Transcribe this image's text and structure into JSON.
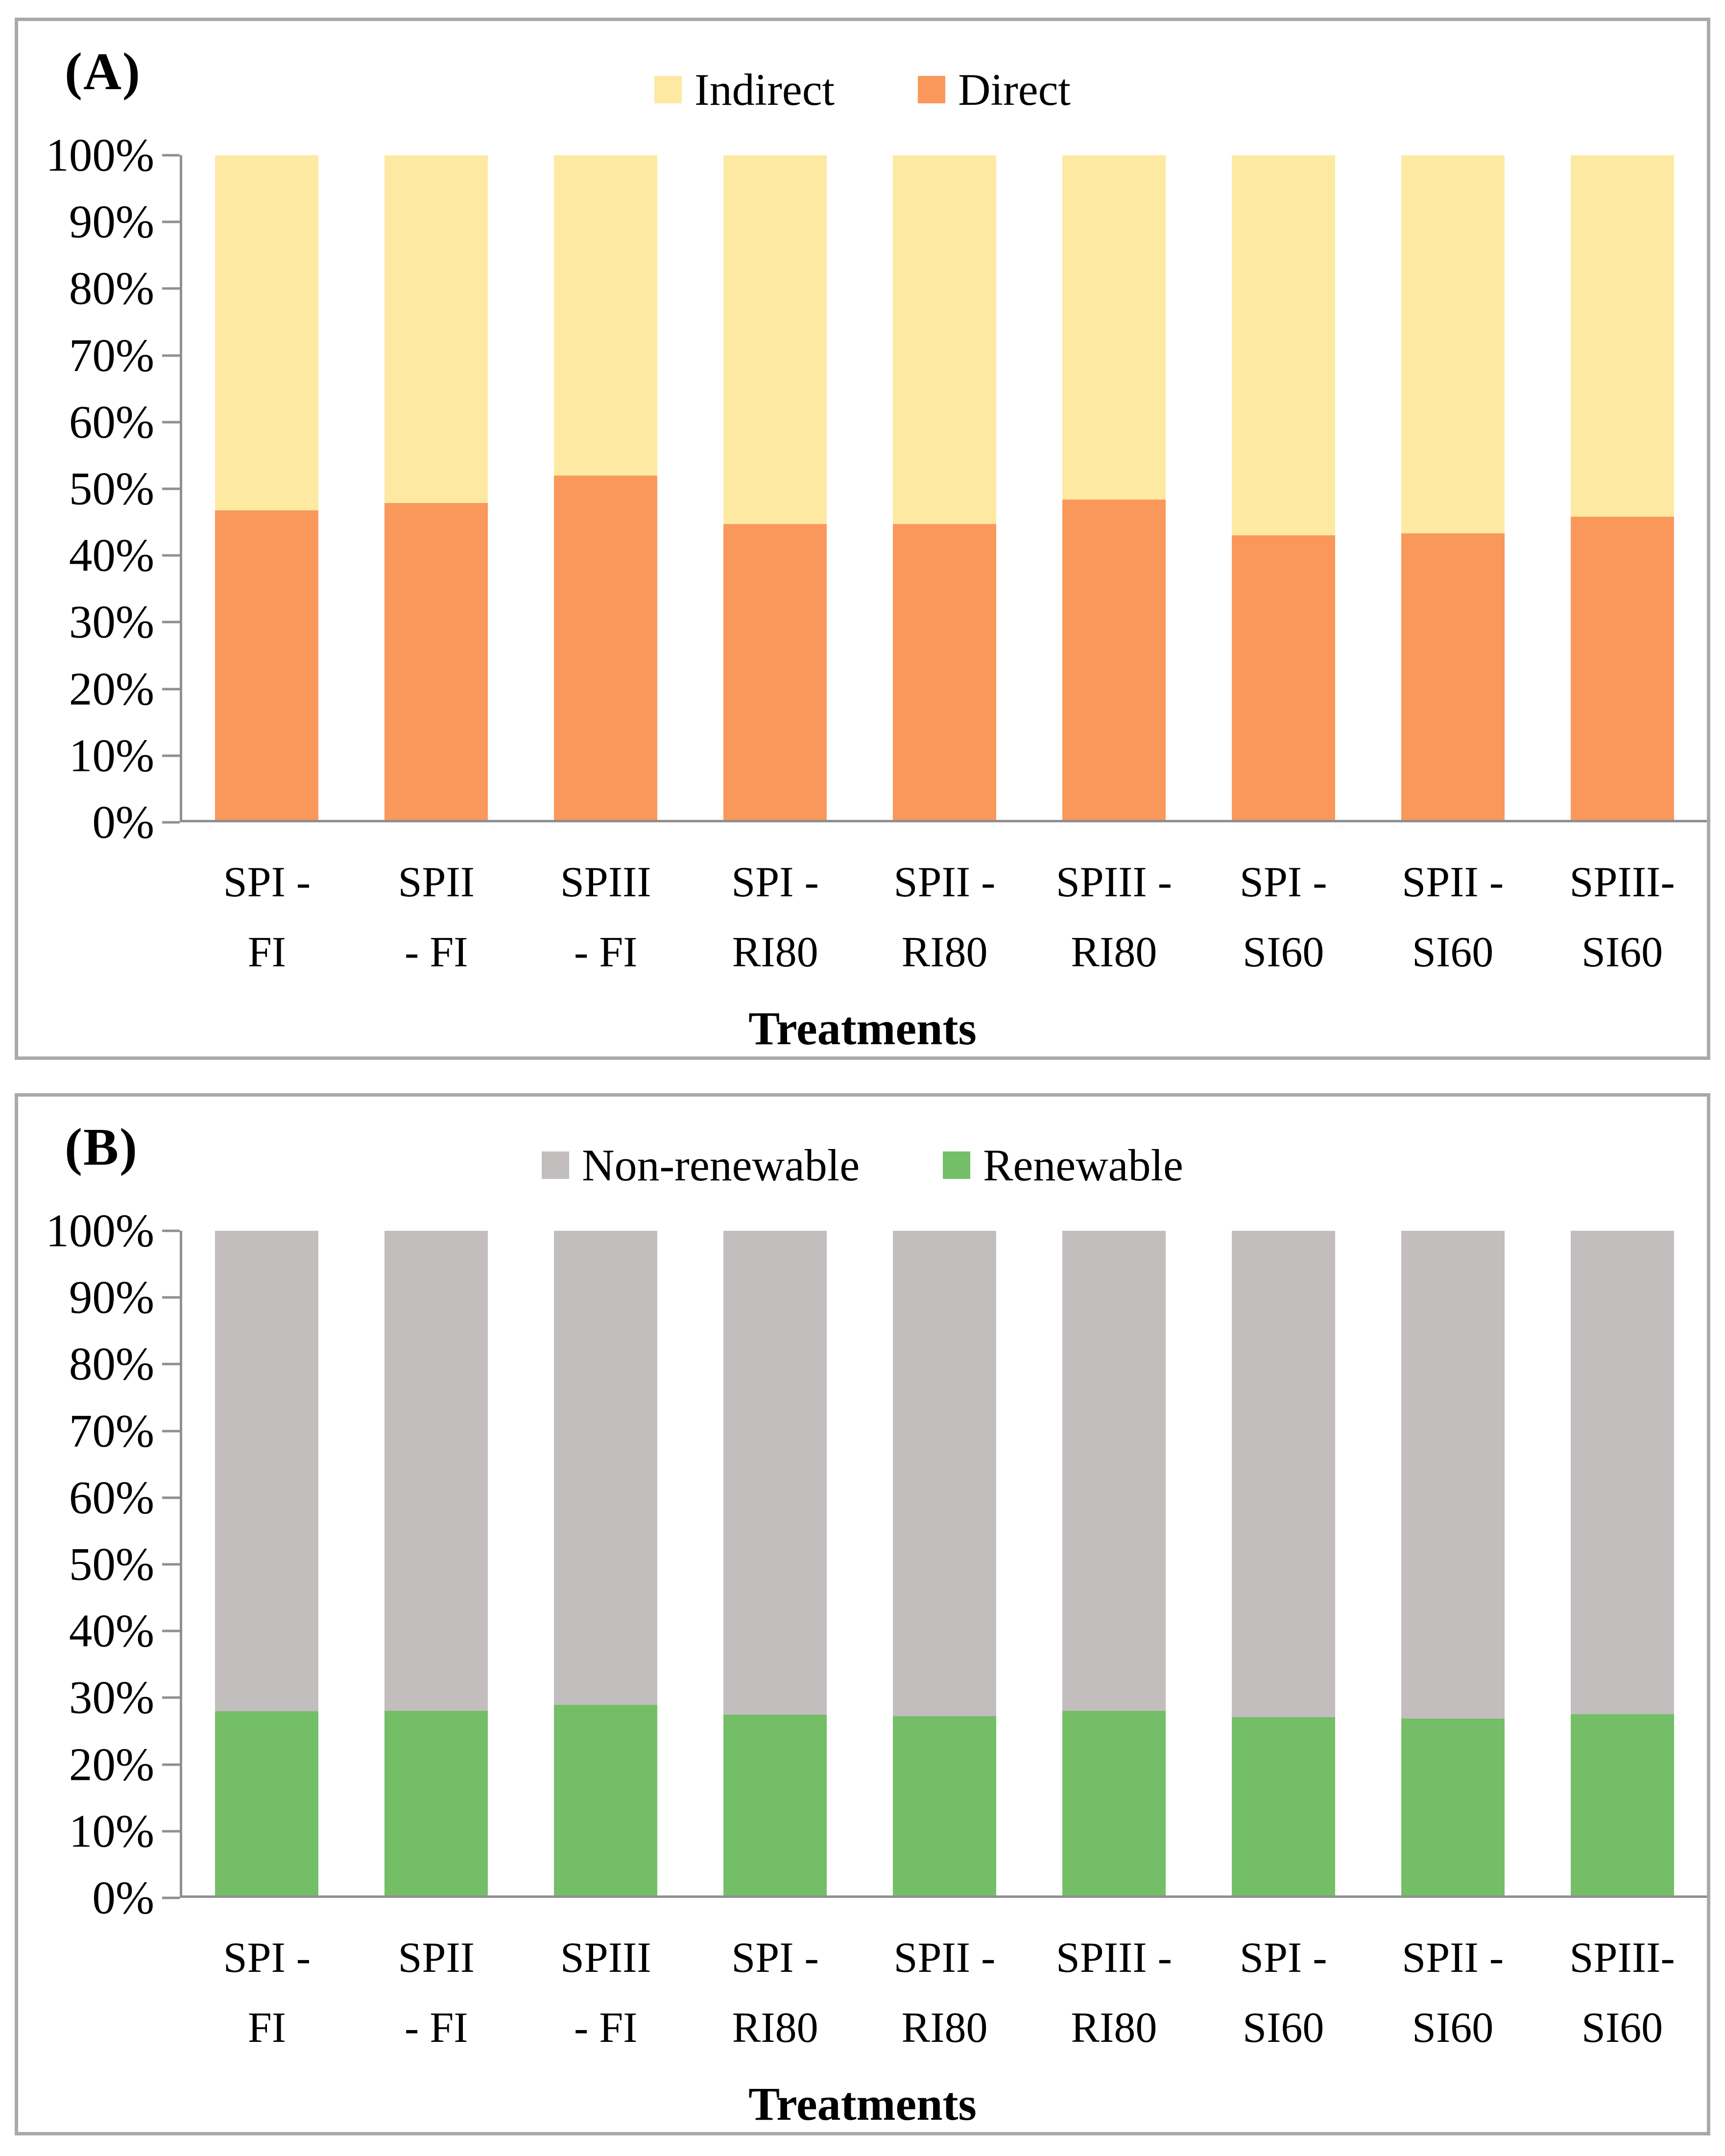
{
  "figure": {
    "x_axis_title": "Treatments",
    "y_tick_labels": [
      "100%",
      "90%",
      "80%",
      "70%",
      "60%",
      "50%",
      "40%",
      "30%",
      "20%",
      "10%",
      "0%"
    ],
    "category_lines": [
      [
        "SPI -",
        "FI"
      ],
      [
        "SPII",
        "- FI"
      ],
      [
        "SPIII",
        "- FI"
      ],
      [
        "SPI -",
        "RI80"
      ],
      [
        "SPII -",
        "RI80"
      ],
      [
        "SPIII -",
        "RI80"
      ],
      [
        "SPI -",
        "SI60"
      ],
      [
        "SPII -",
        "SI60"
      ],
      [
        "SPIII-",
        "SI60"
      ]
    ],
    "axis_color": "#8f8f8f",
    "panel_border_color": "#a9a9a9"
  },
  "chart_data": [
    {
      "type": "bar",
      "panel_label": "(A)",
      "stacked": true,
      "percent_stacked": true,
      "title": "",
      "xlabel": "Treatments",
      "ylabel": "",
      "ylim": [
        0,
        100
      ],
      "grid": false,
      "legend_position": "top",
      "categories": [
        "SPI - FI",
        "SPII - FI",
        "SPIII - FI",
        "SPI - RI80",
        "SPII - RI80",
        "SPIII - RI80",
        "SPI - SI60",
        "SPII - SI60",
        "SPIII- SI60"
      ],
      "series": [
        {
          "name": "Indirect",
          "color": "#fee9a3",
          "values": [
            53.4,
            52.3,
            48.2,
            55.5,
            55.5,
            51.8,
            57.2,
            56.9,
            54.4
          ]
        },
        {
          "name": "Direct",
          "color": "#fa985b",
          "values": [
            46.6,
            47.7,
            51.8,
            44.5,
            44.5,
            48.2,
            42.8,
            43.1,
            45.6
          ]
        }
      ]
    },
    {
      "type": "bar",
      "panel_label": "(B)",
      "stacked": true,
      "percent_stacked": true,
      "title": "",
      "xlabel": "Treatments",
      "ylabel": "",
      "ylim": [
        0,
        100
      ],
      "grid": false,
      "legend_position": "top",
      "categories": [
        "SPI - FI",
        "SPII - FI",
        "SPIII - FI",
        "SPI - RI80",
        "SPII - RI80",
        "SPIII - RI80",
        "SPI - SI60",
        "SPII - SI60",
        "SPIII- SI60"
      ],
      "series": [
        {
          "name": "Non-renewable",
          "color": "#c2bebd",
          "values": [
            72.3,
            72.2,
            71.3,
            72.8,
            73.0,
            72.2,
            73.2,
            73.4,
            72.7
          ]
        },
        {
          "name": "Renewable",
          "color": "#74be68",
          "values": [
            27.7,
            27.8,
            28.7,
            27.2,
            27.0,
            27.8,
            26.8,
            26.6,
            27.3
          ]
        }
      ]
    }
  ]
}
